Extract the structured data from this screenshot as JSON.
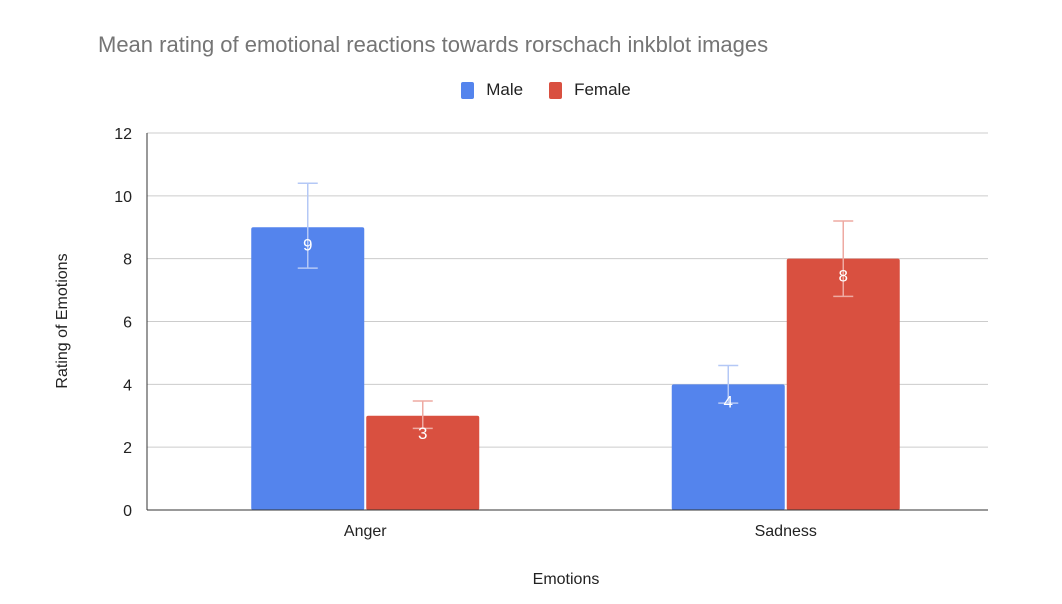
{
  "chart_data": {
    "type": "bar",
    "title": "Mean rating of emotional reactions towards rorschach inkblot images",
    "xlabel": "Emotions",
    "ylabel": "Rating of Emotions",
    "categories": [
      "Anger",
      "Sadness"
    ],
    "series": [
      {
        "name": "Male",
        "color": "#5484ed",
        "errorColor": "#b4c8f6",
        "values": [
          9,
          4
        ],
        "error_low": [
          7.7,
          3.4
        ],
        "error_high": [
          10.4,
          4.6
        ]
      },
      {
        "name": "Female",
        "color": "#d95040",
        "errorColor": "#eeaaa2",
        "values": [
          3,
          8
        ],
        "error_low": [
          2.6,
          6.8
        ],
        "error_high": [
          3.47,
          9.2
        ]
      }
    ],
    "ylim": [
      0,
      12
    ],
    "yticks": [
      0,
      2,
      4,
      6,
      8,
      10,
      12
    ],
    "grid": true,
    "legend_position": "top",
    "data_labels": true
  }
}
